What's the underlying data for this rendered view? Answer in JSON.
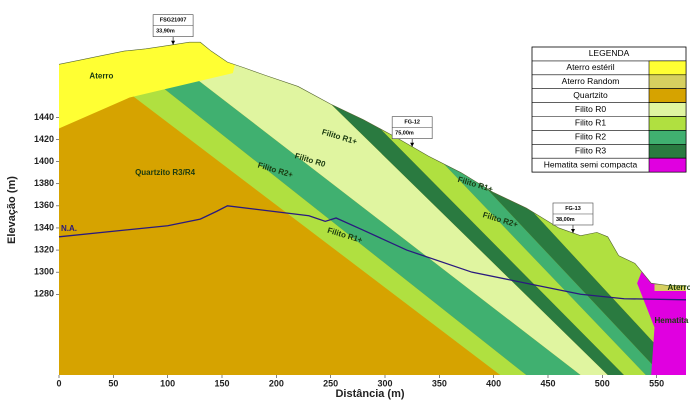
{
  "chart_data": {
    "type": "section",
    "x_label": "Distância (m)",
    "y_label": "Elevação (m)",
    "xlim": [
      0,
      577
    ],
    "ylim": [
      1207,
      1510
    ],
    "xticks": [
      0,
      50,
      100,
      150,
      200,
      250,
      300,
      350,
      400,
      450,
      500,
      550
    ],
    "yticks": [
      1280,
      1300,
      1320,
      1340,
      1360,
      1380,
      1400,
      1420,
      1440
    ],
    "grid": false,
    "surface": {
      "x": [
        0,
        20,
        40,
        60,
        80,
        100,
        120,
        130,
        140,
        155,
        170,
        190,
        220,
        250,
        280,
        310,
        340,
        370,
        400,
        430,
        460,
        480,
        495,
        505,
        515,
        530,
        545,
        560,
        577
      ],
      "y": [
        1488,
        1492,
        1496,
        1500,
        1502,
        1505,
        1508,
        1508,
        1500,
        1490,
        1485,
        1478,
        1468,
        1452,
        1438,
        1422,
        1405,
        1390,
        1372,
        1358,
        1340,
        1333,
        1336,
        1332,
        1315,
        1308,
        1290,
        1288,
        1288
      ]
    },
    "layers": [
      {
        "color": "#d6a300",
        "x": [
          0,
          577,
          577,
          0
        ],
        "y": [
          1207,
          1207,
          1520,
          1520
        ]
      },
      {
        "color": "#b0e040",
        "x": [
          0,
          40,
          430,
          406
        ],
        "y": [
          1510,
          1510,
          1207,
          1207
        ]
      },
      {
        "color": "#40b070",
        "x": [
          40,
          80,
          480,
          430
        ],
        "y": [
          1510,
          1510,
          1207,
          1207
        ]
      },
      {
        "color": "#e0f5a0",
        "x": [
          80,
          190,
          505,
          480
        ],
        "y": [
          1510,
          1510,
          1207,
          1207
        ]
      },
      {
        "color": "#2a7a40",
        "x": [
          190,
          215,
          520,
          505
        ],
        "y": [
          1510,
          1510,
          1207,
          1207
        ]
      },
      {
        "color": "#b0e040",
        "x": [
          215,
          245,
          540,
          520
        ],
        "y": [
          1510,
          1510,
          1207,
          1207
        ]
      },
      {
        "color": "#40b070",
        "x": [
          245,
          265,
          555,
          540
        ],
        "y": [
          1510,
          1510,
          1207,
          1207
        ]
      },
      {
        "color": "#2a7a40",
        "x": [
          265,
          290,
          575,
          555
        ],
        "y": [
          1510,
          1510,
          1207,
          1207
        ]
      },
      {
        "color": "#b0e040",
        "x": [
          290,
          600,
          600,
          575
        ],
        "y": [
          1510,
          1510,
          1207,
          1207
        ]
      },
      {
        "color": "#ffff33",
        "x": [
          0,
          65,
          160,
          170,
          0
        ],
        "y": [
          1430,
          1458,
          1480,
          1520,
          1520
        ]
      },
      {
        "color": "#e000e0",
        "x": [
          545,
          548,
          532,
          540,
          577,
          577
        ],
        "y": [
          1207,
          1250,
          1290,
          1310,
          1310,
          1207
        ]
      },
      {
        "color": "#d6d060",
        "x": [
          548,
          577,
          577,
          548
        ],
        "y": [
          1283,
          1283,
          1289,
          1289
        ]
      }
    ],
    "water_table": {
      "name": "N.A.",
      "color": "#2a1a7e",
      "x": [
        0,
        50,
        100,
        130,
        145,
        155,
        180,
        230,
        245,
        255,
        280,
        320,
        380,
        430,
        480,
        520,
        577
      ],
      "y": [
        1332,
        1337,
        1342,
        1348,
        1355,
        1360,
        1357,
        1351,
        1346,
        1349,
        1338,
        1320,
        1300,
        1290,
        1280,
        1276,
        1275
      ]
    },
    "unit_labels": [
      {
        "text": "Aterro",
        "x": 28,
        "y": 1477
      },
      {
        "text": "Quartzito R3/R4",
        "x": 70,
        "y": 1390
      },
      {
        "text": "Hematita semi compacta",
        "x": 548,
        "y": 1256
      },
      {
        "text": "Aterro estéril",
        "x": 560,
        "y": 1286
      }
    ],
    "band_labels": [
      {
        "text": "Filito R1+",
        "x": 258,
        "y": 1422
      },
      {
        "text": "Filito R0",
        "x": 231,
        "y": 1401
      },
      {
        "text": "Filito R2+",
        "x": 199,
        "y": 1392
      },
      {
        "text": "Filito R1+",
        "x": 263,
        "y": 1333
      },
      {
        "text": "Filito R1+",
        "x": 383,
        "y": 1379
      },
      {
        "text": "Filito R2+",
        "x": 406,
        "y": 1347
      }
    ],
    "boreholes": [
      {
        "name": "FSG21007",
        "depth": "33,90m",
        "x": 105
      },
      {
        "name": "FG-12",
        "depth": "75,00m",
        "x": 325
      },
      {
        "name": "FG-13",
        "depth": "38,00m",
        "x": 473
      }
    ],
    "legend": {
      "title": "LEGENDA",
      "items": [
        {
          "name": "Aterro estéril",
          "color": "#ffff33"
        },
        {
          "name": "Aterro Random",
          "color": "#d6d060"
        },
        {
          "name": "Quartzito",
          "color": "#d6a300"
        },
        {
          "name": "Filito R0",
          "color": "#e0f5a0"
        },
        {
          "name": "Filito R1",
          "color": "#b0e040"
        },
        {
          "name": "Filito R2",
          "color": "#40b070"
        },
        {
          "name": "Filito R3",
          "color": "#2a7a40"
        },
        {
          "name": "Hematita semi compacta",
          "color": "#e000e0"
        }
      ]
    }
  }
}
